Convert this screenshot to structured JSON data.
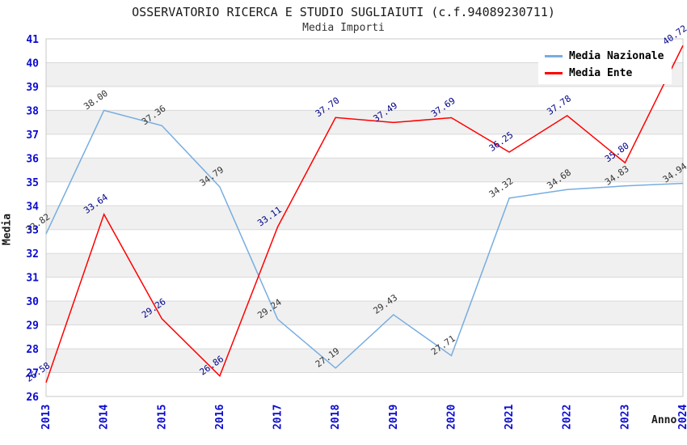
{
  "title": "OSSERVATORIO RICERCA E STUDIO SUGLIAIUTI (c.f.94089230711)",
  "subtitle": "Media Importi",
  "chart_data": {
    "type": "line",
    "categories": [
      "2013",
      "2014",
      "2015",
      "2016",
      "2017",
      "2018",
      "2019",
      "2020",
      "2021",
      "2022",
      "2023",
      "2024"
    ],
    "series": [
      {
        "name": "Media Nazionale",
        "color": "#77ade0",
        "label_color": "#333333",
        "values": [
          32.82,
          38.0,
          37.36,
          34.79,
          29.24,
          27.19,
          29.43,
          27.71,
          34.32,
          34.68,
          34.83,
          34.94
        ]
      },
      {
        "name": "Media Ente",
        "color": "#ff0000",
        "label_color": "#00008b",
        "values": [
          26.58,
          33.64,
          29.26,
          26.86,
          33.11,
          37.7,
          37.49,
          37.69,
          36.25,
          37.78,
          35.8,
          40.72
        ]
      }
    ],
    "title": "OSSERVATORIO RICERCA E STUDIO SUGLIAIUTI (c.f.94089230711)",
    "subtitle": "Media Importi",
    "xlabel": "Anno",
    "ylabel": "Media",
    "ylim": [
      26,
      41
    ],
    "ytick_step": 1,
    "grid": true,
    "legend_position": "top-right",
    "band_colors": [
      "#ffffff",
      "#f0f0f0"
    ],
    "gridline_color": "#d9d9d9",
    "plot_border_color": "#c8c8c8",
    "axis_tick_color": "#0b0bd0",
    "value_label_decimals": 2
  }
}
